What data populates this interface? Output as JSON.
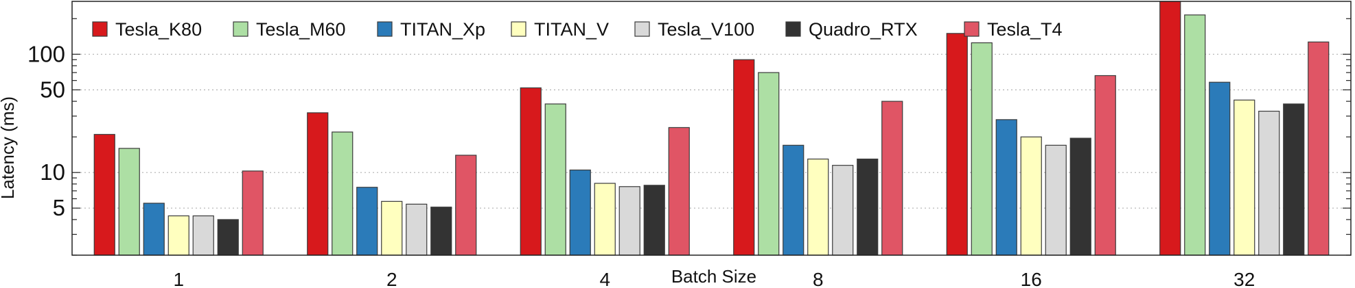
{
  "chart_data": {
    "type": "bar",
    "xlabel": "Batch Size",
    "ylabel": "Latency (ms)",
    "yscale": "log",
    "ylim": [
      2,
      280
    ],
    "yticks": [
      {
        "value": 5,
        "label": "5"
      },
      {
        "value": 10,
        "label": "10"
      },
      {
        "value": 50,
        "label": "50"
      },
      {
        "value": 100,
        "label": "100"
      }
    ],
    "grid": "horizontal dotted at labeled ticks",
    "legend_position": "top-left",
    "categories": [
      "1",
      "2",
      "4",
      "8",
      "16",
      "32"
    ],
    "series": [
      {
        "name": "Tesla_K80",
        "color": "#d7191c",
        "values": [
          21,
          32,
          52,
          90,
          150,
          280
        ]
      },
      {
        "name": "Tesla_M60",
        "color": "#addfa4",
        "values": [
          16,
          22,
          38,
          70,
          125,
          215
        ]
      },
      {
        "name": "TITAN_Xp",
        "color": "#2b7bb9",
        "values": [
          5.5,
          7.5,
          10.5,
          17,
          28,
          58
        ]
      },
      {
        "name": "TITAN_V",
        "color": "#ffffbf",
        "values": [
          4.3,
          5.7,
          8.1,
          13,
          20,
          41
        ]
      },
      {
        "name": "Tesla_V100",
        "color": "#d9d9d9",
        "values": [
          4.3,
          5.4,
          7.6,
          11.5,
          17,
          33
        ]
      },
      {
        "name": "Quadro_RTX",
        "color": "#333333",
        "values": [
          4.0,
          5.1,
          7.8,
          13,
          19.5,
          38
        ]
      },
      {
        "name": "Tesla_T4",
        "color": "#e05565",
        "values": [
          10.3,
          14,
          24,
          40,
          66,
          127
        ]
      }
    ]
  }
}
